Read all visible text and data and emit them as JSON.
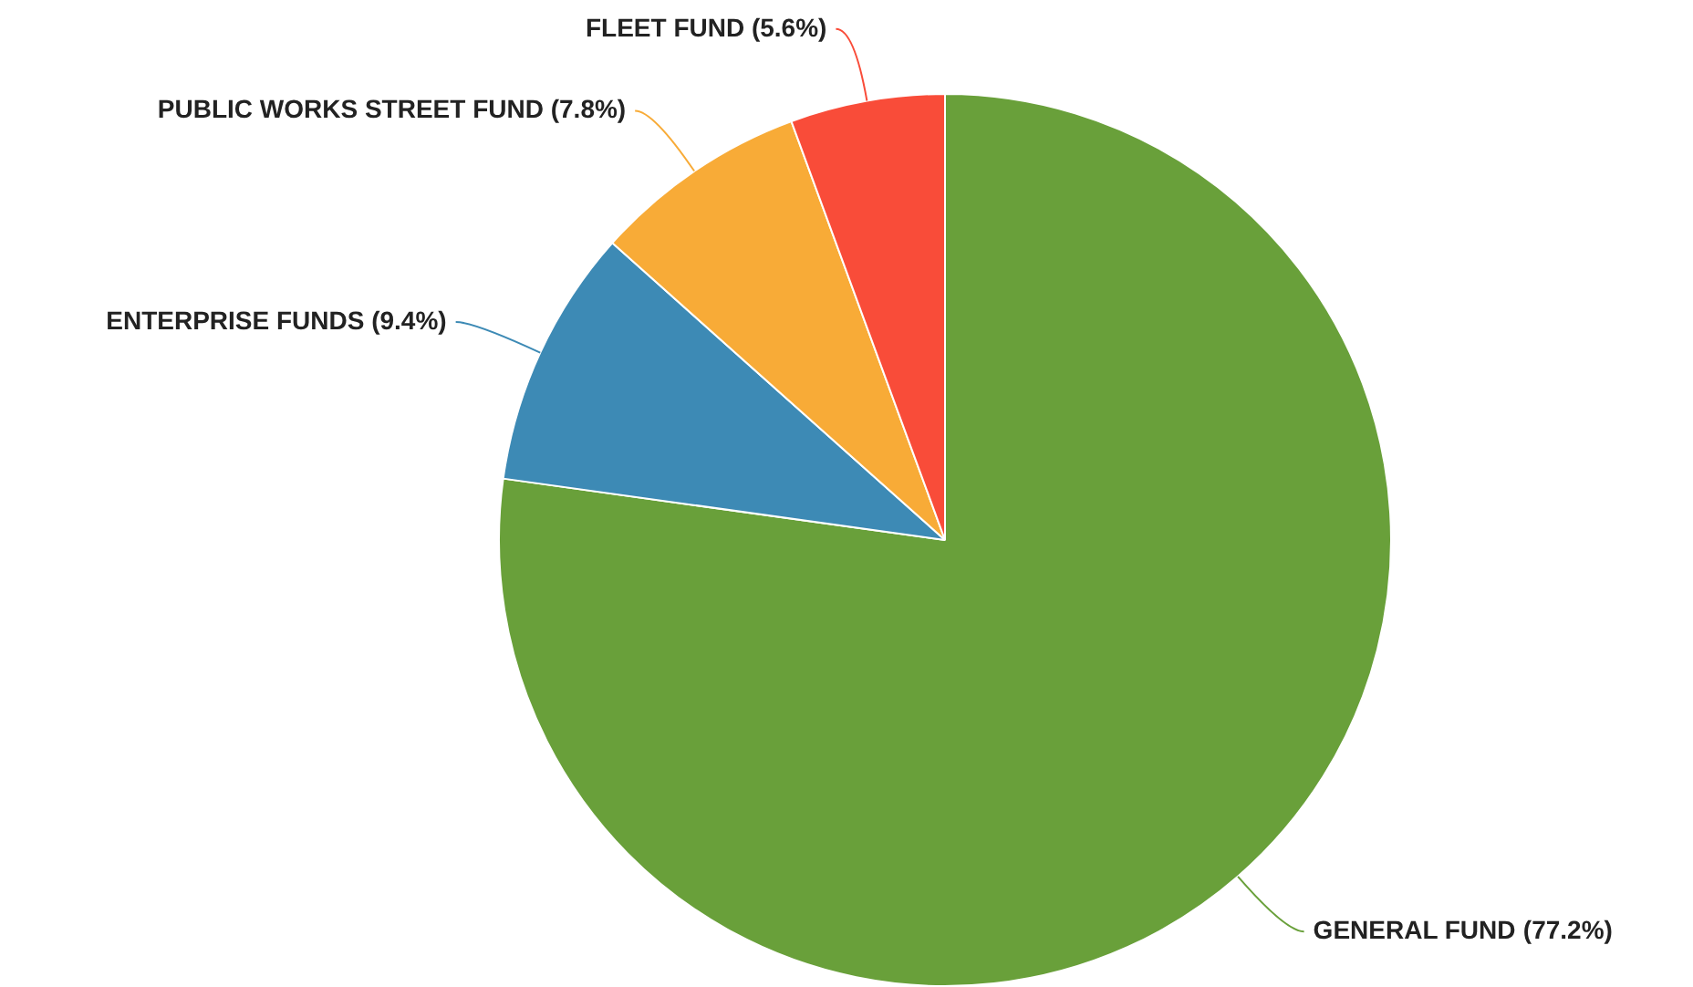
{
  "chart_data": {
    "type": "pie",
    "categories": [
      "GENERAL FUND",
      "ENTERPRISE FUNDS",
      "PUBLIC WORKS STREET FUND",
      "FLEET FUND"
    ],
    "values": [
      77.2,
      9.4,
      7.8,
      5.6
    ],
    "colors": [
      "#69a03a",
      "#3d8ab5",
      "#f8ab37",
      "#f94c39"
    ],
    "value_labels": [
      "(77.2%)",
      "(9.4%)",
      "(7.8%)",
      "(5.6%)"
    ],
    "legend": false
  }
}
